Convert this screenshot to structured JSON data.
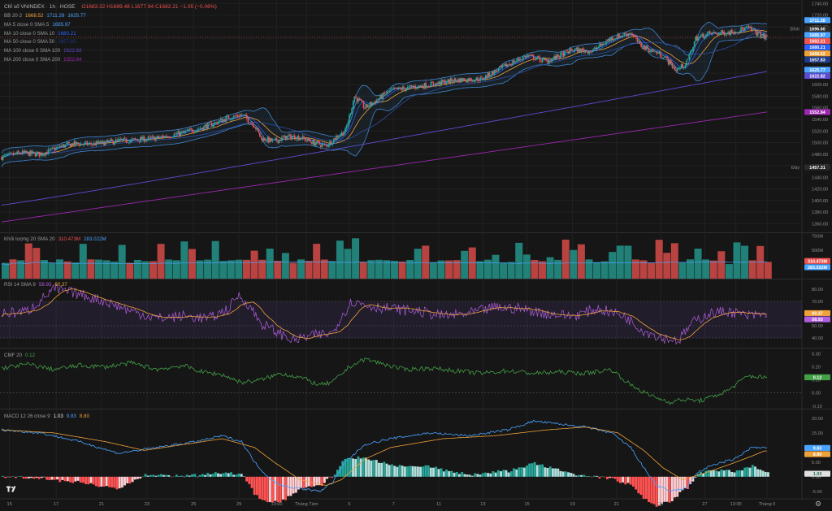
{
  "header": {
    "title": "Chỉ số VNINDEX · 1h · HOSE",
    "ohlc": "O1683.32  H1689.48  L1677.94  C1682.21  −1.05 (−0.06%)"
  },
  "legends": {
    "main": [
      {
        "label": "BB 20 2",
        "values": [
          "1668.52",
          "1711.28",
          "1625.77"
        ],
        "colors": [
          "#f0a23a",
          "#4aa3ff",
          "#4aa3ff"
        ]
      },
      {
        "label": "MA 5 close 0 SMA 5",
        "values": [
          "1685.97"
        ],
        "colors": [
          "#4aa3ff"
        ]
      },
      {
        "label": "MA 10 close 0 SMA 10",
        "values": [
          "1680.21"
        ],
        "colors": [
          "#2962ff"
        ]
      },
      {
        "label": "MA 50 close 0 SMA 50",
        "values": [
          "1657.83"
        ],
        "colors": [
          "#1e3a8a"
        ]
      },
      {
        "label": "MA 100 close 0 SMA 100",
        "values": [
          "1622.82"
        ],
        "colors": [
          "#5b4bd1"
        ]
      },
      {
        "label": "MA 200 close 0 SMA 200",
        "values": [
          "1552.84"
        ],
        "colors": [
          "#9c27b0"
        ]
      }
    ],
    "volume": {
      "label": "Khối lượng 20 SMA 20",
      "values": [
        "310.473M",
        "283.022M"
      ],
      "colors": [
        "#ef5350",
        "#4aa3ff"
      ]
    },
    "rsi": {
      "label": "RSI 14 SMA 9",
      "values": [
        "58.93",
        "60.37"
      ],
      "colors": [
        "#b15fe0",
        "#f0a23a"
      ]
    },
    "cmf": {
      "label": "CMF 20",
      "values": [
        "0.12"
      ],
      "colors": [
        "#43a047"
      ]
    },
    "macd": {
      "label": "MACD 12 26 close 9",
      "values": [
        "1.03",
        "9.83",
        "8.80"
      ],
      "colors": [
        "#e6e6e6",
        "#4aa3ff",
        "#f0a23a"
      ]
    }
  },
  "colors": {
    "up": "#26a69a",
    "down": "#ef5350",
    "bb": "#4aa3ff",
    "basis": "#f0a23a",
    "sma200": "#9c27b0",
    "sma100": "#5b4bd1",
    "rsi": "#b15fe0",
    "cmf": "#43a047"
  },
  "chart_data": [
    {
      "id": "price",
      "type": "candlestick",
      "title": "Chỉ số VNINDEX · 1h · HOSE",
      "ylim": [
        1345,
        1742
      ],
      "yticks": [
        1740,
        1720,
        1700,
        1680,
        1660,
        1640,
        1620,
        1600,
        1580,
        1560,
        1540,
        1520,
        1500,
        1480,
        1460,
        1440,
        1420,
        1400,
        1380,
        1360
      ],
      "x_ticks": [
        {
          "i": 6,
          "label": "15"
        },
        {
          "i": 42,
          "label": "17"
        },
        {
          "i": 77,
          "label": "21"
        },
        {
          "i": 112,
          "label": "23"
        },
        {
          "i": 148,
          "label": "25"
        },
        {
          "i": 183,
          "label": "29"
        },
        {
          "i": 212,
          "label": "13:00"
        },
        {
          "i": 235,
          "label": "Tháng Tám"
        },
        {
          "i": 268,
          "label": "5"
        },
        {
          "i": 302,
          "label": "7"
        },
        {
          "i": 337,
          "label": "11"
        },
        {
          "i": 371,
          "label": "13"
        },
        {
          "i": 405,
          "label": "15"
        },
        {
          "i": 440,
          "label": "19"
        },
        {
          "i": 474,
          "label": "21"
        },
        {
          "i": 508,
          "label": "25"
        },
        {
          "i": 542,
          "label": "27"
        },
        {
          "i": 566,
          "label": "13:00"
        },
        {
          "i": 590,
          "label": "Tháng 9"
        }
      ],
      "anchors_close": [
        [
          0,
          1475
        ],
        [
          15,
          1482
        ],
        [
          30,
          1480
        ],
        [
          45,
          1493
        ],
        [
          55,
          1498
        ],
        [
          70,
          1497
        ],
        [
          90,
          1503
        ],
        [
          100,
          1504
        ],
        [
          120,
          1508
        ],
        [
          140,
          1517
        ],
        [
          160,
          1530
        ],
        [
          175,
          1543
        ],
        [
          185,
          1548
        ],
        [
          195,
          1530
        ],
        [
          200,
          1507
        ],
        [
          210,
          1502
        ],
        [
          220,
          1510
        ],
        [
          230,
          1509
        ],
        [
          240,
          1500
        ],
        [
          250,
          1494
        ],
        [
          258,
          1510
        ],
        [
          265,
          1520
        ],
        [
          272,
          1580
        ],
        [
          280,
          1560
        ],
        [
          290,
          1575
        ],
        [
          300,
          1590
        ],
        [
          315,
          1595
        ],
        [
          330,
          1600
        ],
        [
          350,
          1608
        ],
        [
          370,
          1610
        ],
        [
          382,
          1625
        ],
        [
          395,
          1640
        ],
        [
          405,
          1650
        ],
        [
          420,
          1640
        ],
        [
          440,
          1660
        ],
        [
          455,
          1658
        ],
        [
          470,
          1680
        ],
        [
          485,
          1690
        ],
        [
          492,
          1668
        ],
        [
          500,
          1660
        ],
        [
          510,
          1650
        ],
        [
          520,
          1625
        ],
        [
          528,
          1637
        ],
        [
          535,
          1680
        ],
        [
          545,
          1688
        ],
        [
          560,
          1690
        ],
        [
          575,
          1698
        ],
        [
          588,
          1682
        ]
      ],
      "markers": [
        {
          "label": "Đỉnh",
          "value": 1696.6
        },
        {
          "label": "Đáy",
          "value": 1457.31
        }
      ],
      "price_badges": [
        {
          "value": 1711.28,
          "color": "#4aa3ff"
        },
        {
          "value": 1696.6,
          "color": "#2a2a2a"
        },
        {
          "value": 1685.97,
          "color": "#4aa3ff"
        },
        {
          "value": 1682.21,
          "color": "#ef5350"
        },
        {
          "value": 1680.21,
          "color": "#2962ff"
        },
        {
          "value": 1668.52,
          "color": "#f0a23a"
        },
        {
          "value": 1657.83,
          "color": "#1e3a8a"
        },
        {
          "value": 1625.77,
          "color": "#4aa3ff"
        },
        {
          "value": 1622.82,
          "color": "#5b4bd1"
        },
        {
          "value": 1552.84,
          "color": "#9c27b0"
        },
        {
          "value": 1457.31,
          "color": "#2a2a2a"
        }
      ]
    },
    {
      "id": "volume",
      "type": "bar",
      "title": "Khối lượng 20 SMA 20",
      "ylim": [
        0,
        800
      ],
      "yticks_labels": [
        {
          "v": 750,
          "label": "750M"
        },
        {
          "v": 500,
          "label": "500M"
        }
      ],
      "sma": 283.022,
      "last": 310.473
    },
    {
      "id": "rsi",
      "type": "line",
      "title": "RSI 14 SMA 9",
      "ylim": [
        32,
        88
      ],
      "yticks": [
        80,
        70,
        60,
        50,
        40
      ],
      "bands": [
        70,
        50,
        40
      ],
      "anchors": [
        [
          0,
          60
        ],
        [
          20,
          62
        ],
        [
          40,
          80
        ],
        [
          60,
          76
        ],
        [
          80,
          70
        ],
        [
          100,
          62
        ],
        [
          120,
          56
        ],
        [
          140,
          58
        ],
        [
          160,
          56
        ],
        [
          175,
          64
        ],
        [
          182,
          75
        ],
        [
          190,
          68
        ],
        [
          200,
          52
        ],
        [
          210,
          46
        ],
        [
          225,
          38
        ],
        [
          240,
          42
        ],
        [
          255,
          44
        ],
        [
          262,
          58
        ],
        [
          270,
          70
        ],
        [
          285,
          66
        ],
        [
          300,
          64
        ],
        [
          320,
          62
        ],
        [
          340,
          58
        ],
        [
          360,
          60
        ],
        [
          380,
          65
        ],
        [
          400,
          64
        ],
        [
          420,
          60
        ],
        [
          440,
          58
        ],
        [
          460,
          64
        ],
        [
          480,
          58
        ],
        [
          495,
          46
        ],
        [
          510,
          40
        ],
        [
          522,
          38
        ],
        [
          532,
          52
        ],
        [
          545,
          60
        ],
        [
          560,
          62
        ],
        [
          575,
          58
        ],
        [
          588,
          59
        ]
      ],
      "rsi_last": 58.93,
      "sma_last": 60.37
    },
    {
      "id": "cmf",
      "type": "line",
      "title": "CMF 20",
      "ylim": [
        -0.12,
        0.34
      ],
      "yticks": [
        0.3,
        0.2,
        0.1,
        0.0,
        -0.1
      ],
      "anchors": [
        [
          0,
          0.19
        ],
        [
          20,
          0.22
        ],
        [
          40,
          0.18
        ],
        [
          60,
          0.21
        ],
        [
          80,
          0.2
        ],
        [
          100,
          0.23
        ],
        [
          120,
          0.18
        ],
        [
          140,
          0.21
        ],
        [
          155,
          0.16
        ],
        [
          170,
          0.14
        ],
        [
          185,
          0.08
        ],
        [
          200,
          0.1
        ],
        [
          215,
          0.15
        ],
        [
          230,
          0.12
        ],
        [
          245,
          0.06
        ],
        [
          255,
          0.08
        ],
        [
          268,
          0.2
        ],
        [
          280,
          0.26
        ],
        [
          295,
          0.22
        ],
        [
          310,
          0.18
        ],
        [
          330,
          0.19
        ],
        [
          350,
          0.17
        ],
        [
          370,
          0.15
        ],
        [
          390,
          0.17
        ],
        [
          410,
          0.15
        ],
        [
          430,
          0.16
        ],
        [
          450,
          0.15
        ],
        [
          470,
          0.18
        ],
        [
          485,
          0.06
        ],
        [
          500,
          -0.02
        ],
        [
          515,
          -0.07
        ],
        [
          525,
          -0.05
        ],
        [
          538,
          -0.06
        ],
        [
          548,
          -0.03
        ],
        [
          560,
          0.02
        ],
        [
          575,
          0.13
        ],
        [
          588,
          0.12
        ]
      ],
      "last": 0.12
    },
    {
      "id": "macd",
      "type": "histogram+line",
      "title": "MACD 12 26 close 9",
      "ylim": [
        -7,
        23
      ],
      "yticks": [
        20.0,
        15.0,
        10.0,
        5.0,
        0.0,
        -5.0
      ],
      "macd_anchors": [
        [
          0,
          16
        ],
        [
          30,
          15
        ],
        [
          60,
          12
        ],
        [
          90,
          8
        ],
        [
          120,
          10
        ],
        [
          150,
          12
        ],
        [
          170,
          14
        ],
        [
          185,
          12
        ],
        [
          195,
          5
        ],
        [
          205,
          0
        ],
        [
          215,
          -3
        ],
        [
          230,
          -4
        ],
        [
          245,
          -5
        ],
        [
          255,
          -2
        ],
        [
          265,
          5
        ],
        [
          280,
          11
        ],
        [
          300,
          13
        ],
        [
          330,
          15
        ],
        [
          360,
          14
        ],
        [
          390,
          16
        ],
        [
          410,
          19
        ],
        [
          430,
          18
        ],
        [
          450,
          17
        ],
        [
          470,
          15
        ],
        [
          485,
          10
        ],
        [
          495,
          3
        ],
        [
          505,
          -3
        ],
        [
          515,
          -5
        ],
        [
          528,
          -4
        ],
        [
          535,
          1
        ],
        [
          548,
          4
        ],
        [
          565,
          6
        ],
        [
          578,
          10
        ],
        [
          588,
          9.83
        ]
      ],
      "signal_anchors": [
        [
          0,
          16
        ],
        [
          40,
          15
        ],
        [
          80,
          12
        ],
        [
          110,
          9
        ],
        [
          140,
          11
        ],
        [
          170,
          13
        ],
        [
          195,
          10
        ],
        [
          210,
          5
        ],
        [
          230,
          -1
        ],
        [
          250,
          -3
        ],
        [
          262,
          -1
        ],
        [
          280,
          6
        ],
        [
          300,
          10
        ],
        [
          340,
          13
        ],
        [
          380,
          14
        ],
        [
          420,
          16
        ],
        [
          450,
          17
        ],
        [
          475,
          15
        ],
        [
          495,
          9
        ],
        [
          510,
          3
        ],
        [
          525,
          -1
        ],
        [
          540,
          1
        ],
        [
          560,
          4
        ],
        [
          578,
          7
        ],
        [
          588,
          8.8
        ]
      ],
      "macd_last": 9.83,
      "signal_last": 8.8,
      "hist_last": 1.03
    }
  ]
}
